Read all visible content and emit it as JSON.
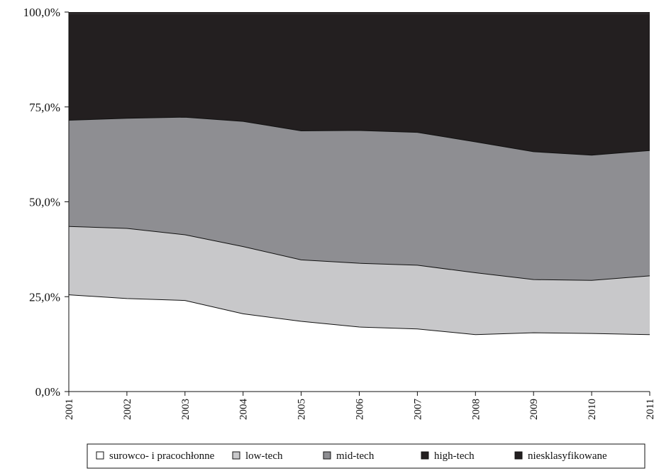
{
  "chart_data": {
    "type": "area",
    "stacked": true,
    "normalized": true,
    "categories": [
      "2001",
      "2002",
      "2003",
      "2004",
      "2005",
      "2006",
      "2007",
      "2008",
      "2009",
      "2010",
      "2011"
    ],
    "y_ticks": [
      "0,0%",
      "25,0%",
      "50,0%",
      "75,0%",
      "100,0%"
    ],
    "ylim": [
      0,
      100
    ],
    "grid": false,
    "legend_position": "bottom",
    "series": [
      {
        "name": "surowco- i pracochłonne",
        "color": "#ffffff",
        "values": [
          25.5,
          24.5,
          24.0,
          20.5,
          18.5,
          17.0,
          16.5,
          15.0,
          15.5,
          15.3,
          15.0
        ]
      },
      {
        "name": "low-tech",
        "color": "#c8c8ca",
        "values": [
          18.0,
          18.5,
          17.3,
          17.7,
          16.2,
          16.8,
          16.8,
          16.3,
          14.0,
          14.0,
          15.5
        ]
      },
      {
        "name": "mid-tech",
        "color": "#8e8e92",
        "values": [
          28.0,
          29.0,
          31.0,
          33.0,
          34.0,
          35.0,
          35.0,
          34.5,
          33.7,
          33.0,
          33.0
        ]
      },
      {
        "name": "high-tech",
        "color": "#231f20",
        "values": [
          28.0,
          27.5,
          27.2,
          28.3,
          30.8,
          30.7,
          31.2,
          33.7,
          36.3,
          37.2,
          36.0
        ]
      },
      {
        "name": "niesklasyfikowane",
        "color": "#231f20",
        "values": [
          0.5,
          0.5,
          0.5,
          0.5,
          0.5,
          0.5,
          0.5,
          0.5,
          0.5,
          0.5,
          0.5
        ]
      }
    ]
  }
}
